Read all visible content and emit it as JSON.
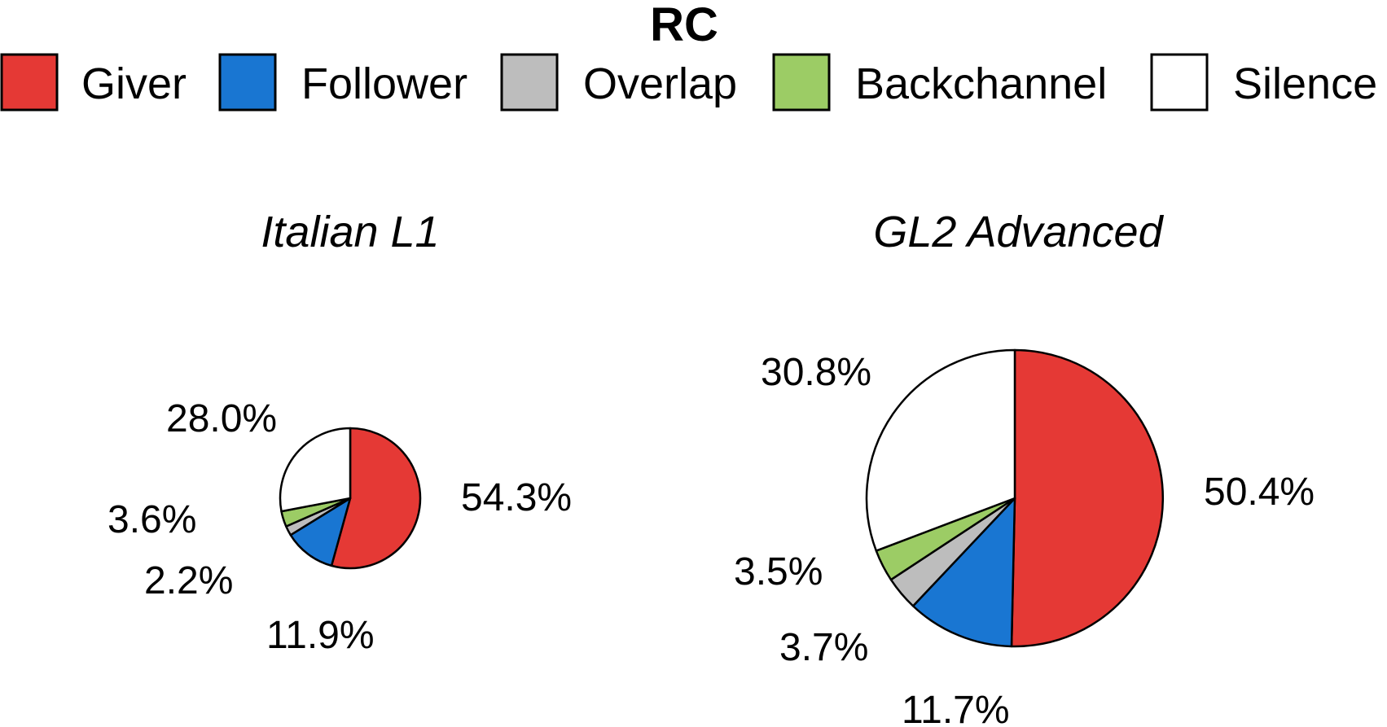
{
  "chart_data": {
    "type": "pie",
    "title": "RC",
    "legend": {
      "placement": "top",
      "entries": [
        {
          "name": "Giver",
          "color": "#e53935"
        },
        {
          "name": "Follower",
          "color": "#1976d2"
        },
        {
          "name": "Overlap",
          "color": "#bdbdbd"
        },
        {
          "name": "Backchannel",
          "color": "#9ccc65"
        },
        {
          "name": "Silence",
          "color": "#ffffff"
        }
      ]
    },
    "charts": [
      {
        "subtitle": "Italian L1",
        "slices": [
          {
            "category": "Giver",
            "value": 54.3,
            "label": "54.3%"
          },
          {
            "category": "Follower",
            "value": 11.9,
            "label": "11.9%"
          },
          {
            "category": "Overlap",
            "value": 2.2,
            "label": "2.2%"
          },
          {
            "category": "Backchannel",
            "value": 3.6,
            "label": "3.6%"
          },
          {
            "category": "Silence",
            "value": 28.0,
            "label": "28.0%"
          }
        ]
      },
      {
        "subtitle": "GL2 Advanced",
        "slices": [
          {
            "category": "Giver",
            "value": 50.4,
            "label": "50.4%"
          },
          {
            "category": "Follower",
            "value": 11.7,
            "label": "11.7%"
          },
          {
            "category": "Overlap",
            "value": 3.7,
            "label": "3.7%"
          },
          {
            "category": "Backchannel",
            "value": 3.5,
            "label": "3.5%"
          },
          {
            "category": "Silence",
            "value": 30.8,
            "label": "30.8%"
          }
        ]
      }
    ]
  }
}
